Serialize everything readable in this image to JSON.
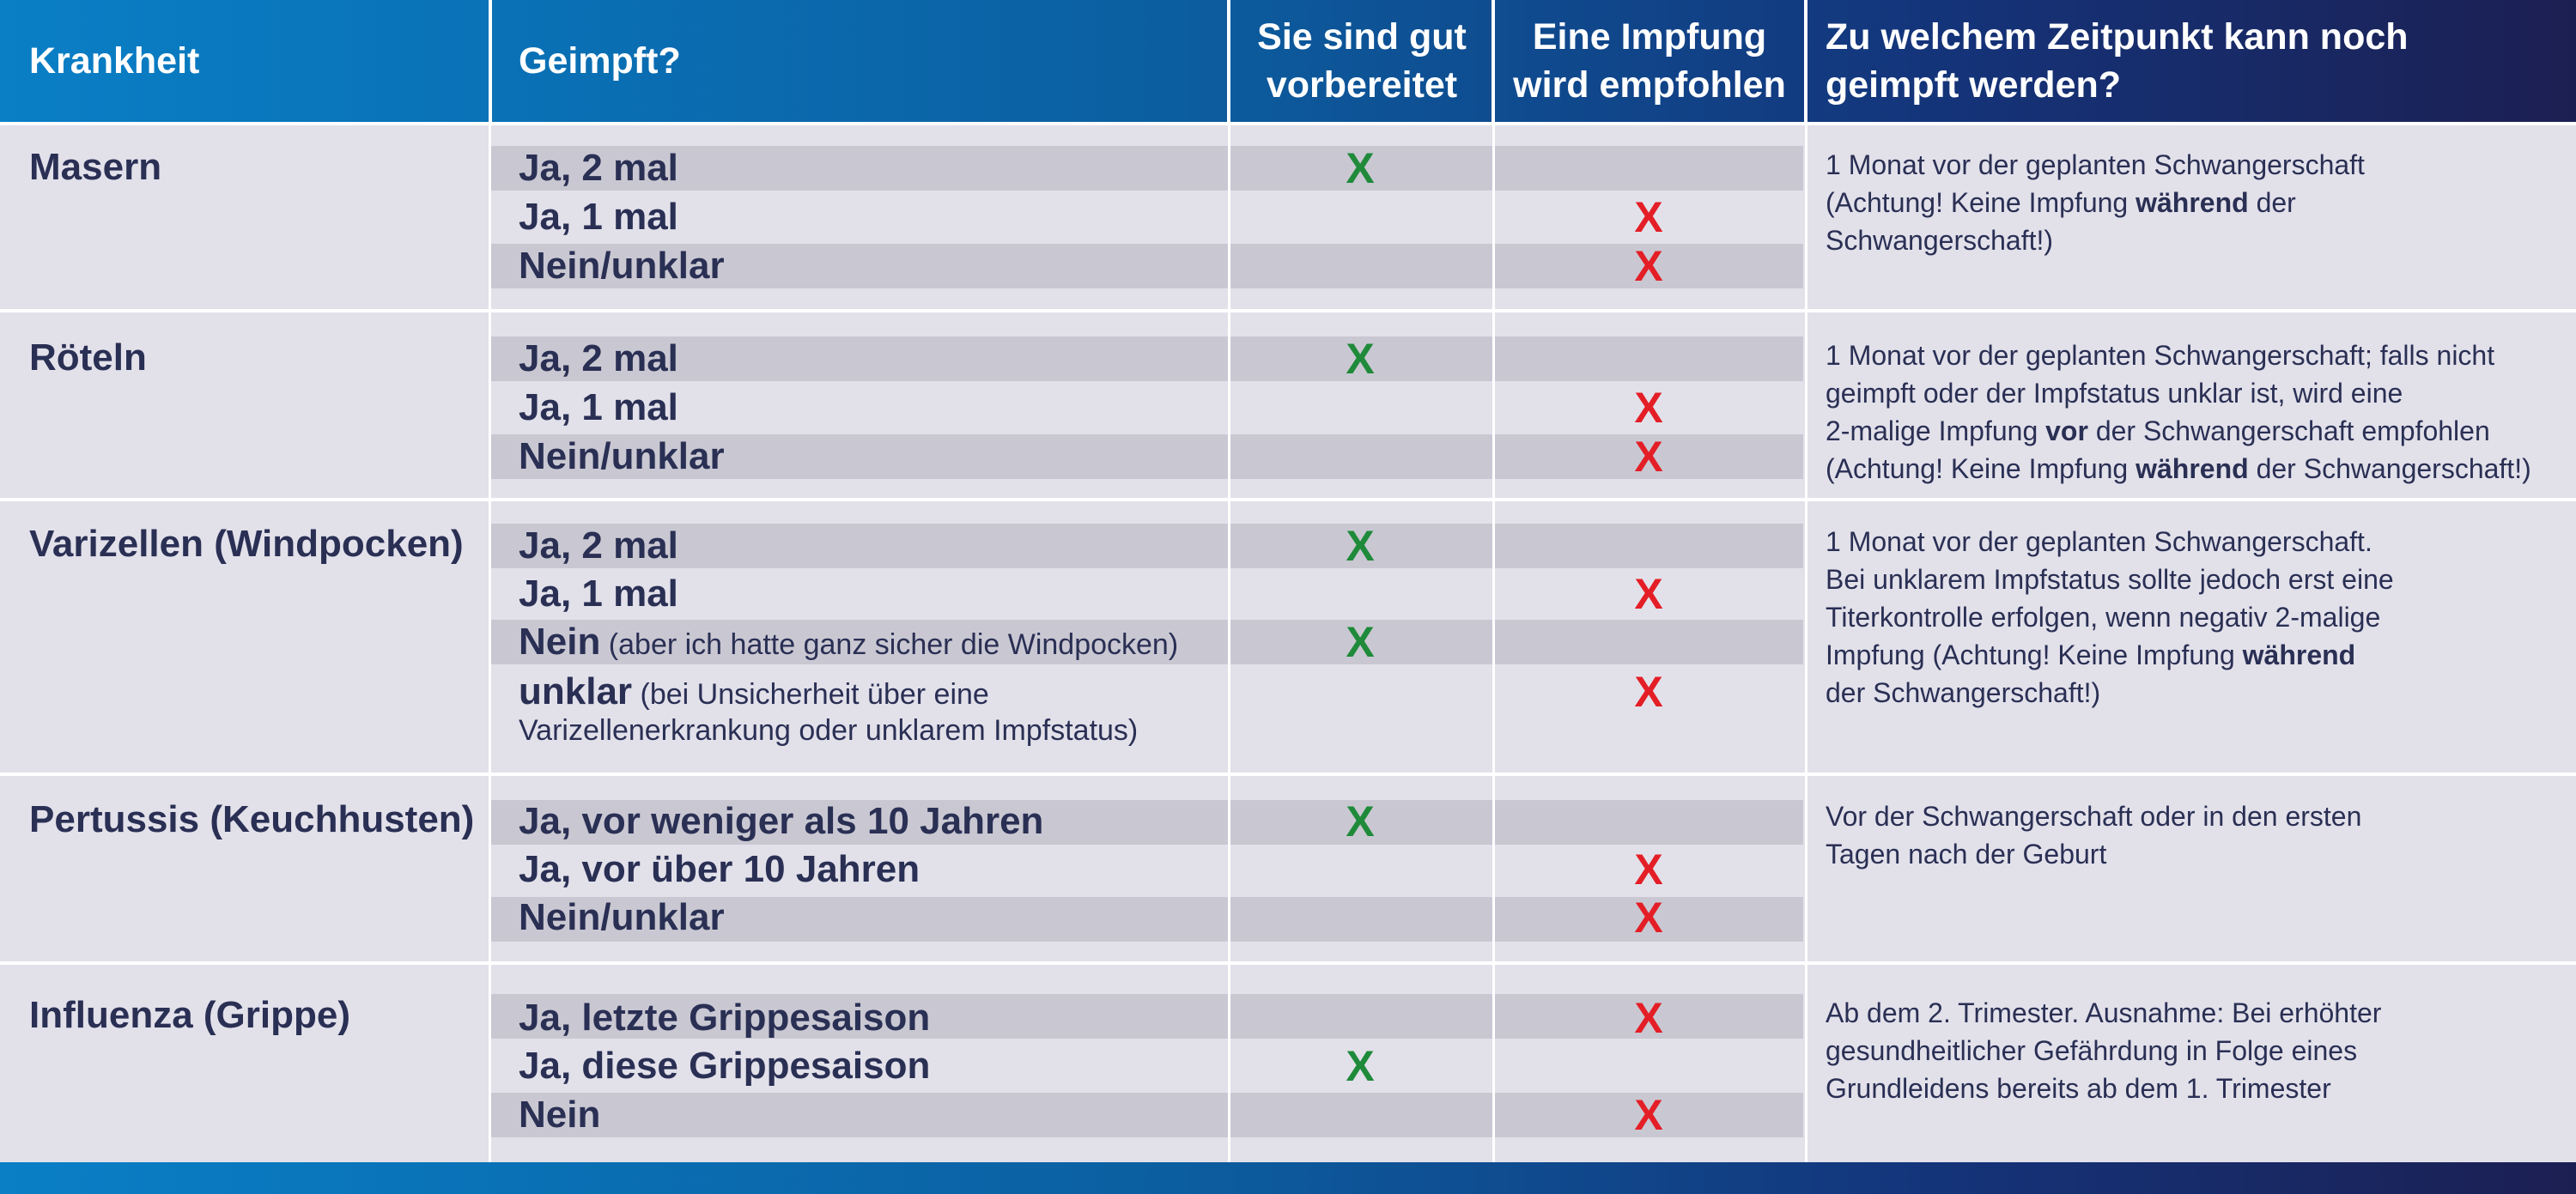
{
  "header": {
    "col1": "Krankheit",
    "col2": "Geimpft?",
    "col3_line1": "Sie sind gut",
    "col3_line2": "vorbereitet",
    "col4_line1": "Eine Impfung",
    "col4_line2": "wird empfohlen",
    "col5_line1": "Zu welchem Zeitpunkt kann noch",
    "col5_line2": "geimpft werden?"
  },
  "mark_symbol": "X",
  "colors": {
    "good": "#1f8a3a",
    "bad": "#e41e26",
    "header_start": "#0a7fc6",
    "header_end": "#1c1f52"
  },
  "rows": [
    {
      "disease": "Masern",
      "answers": [
        {
          "label": "Ja, 2 mal",
          "status": "good"
        },
        {
          "label": "Ja, 1 mal",
          "status": "bad"
        },
        {
          "label": "Nein/unklar",
          "status": "bad"
        }
      ],
      "note": {
        "l1": "1 Monat vor der geplanten Schwangerschaft",
        "l2a": "(Achtung! Keine Impfung ",
        "l2b": "während",
        "l2c": " der",
        "l3": "Schwangerschaft!)"
      }
    },
    {
      "disease": "Röteln",
      "answers": [
        {
          "label": "Ja, 2 mal",
          "status": "good"
        },
        {
          "label": "Ja, 1 mal",
          "status": "bad"
        },
        {
          "label": "Nein/unklar",
          "status": "bad"
        }
      ],
      "note": {
        "l1": "1 Monat vor der geplanten Schwangerschaft; falls nicht",
        "l2": "geimpft oder der Impfstatus unklar ist, wird eine",
        "l3a": "2-malige Impfung ",
        "l3b": "vor",
        "l3c": " der Schwangerschaft empfohlen",
        "l4a": "(Achtung! Keine Impfung ",
        "l4b": "während",
        "l4c": " der Schwangerschaft!)"
      }
    },
    {
      "disease": "Varizellen (Windpocken)",
      "answers": [
        {
          "label": "Ja, 2 mal",
          "status": "good"
        },
        {
          "label": "Ja, 1 mal",
          "status": "bad"
        },
        {
          "label": "Nein",
          "note": " (aber ich hatte ganz sicher die Windpocken)",
          "status": "good"
        },
        {
          "label": "unklar",
          "note": " (bei Unsicherheit über eine",
          "note2": "Varizellenerkrankung oder unklarem Impfstatus)",
          "status": "bad"
        }
      ],
      "note": {
        "l1": "1 Monat vor der geplanten Schwangerschaft.",
        "l2": "Bei unklarem Impfstatus sollte jedoch erst eine",
        "l3": "Titerkontrolle erfolgen, wenn negativ 2-malige",
        "l4a": "Impfung (Achtung! Keine Impfung ",
        "l4b": "während",
        "l5": "der Schwangerschaft!)"
      }
    },
    {
      "disease": "Pertussis (Keuchhusten)",
      "answers": [
        {
          "label": "Ja, vor weniger als 10 Jahren",
          "status": "good"
        },
        {
          "label": "Ja, vor über 10 Jahren",
          "status": "bad"
        },
        {
          "label": "Nein/unklar",
          "status": "bad"
        }
      ],
      "note": {
        "l1": "Vor der Schwangerschaft oder in den ersten",
        "l2": "Tagen nach der Geburt"
      }
    },
    {
      "disease": "Influenza (Grippe)",
      "answers": [
        {
          "label": "Ja, letzte Grippesaison",
          "status": "bad"
        },
        {
          "label": "Ja, diese Grippesaison",
          "status": "good"
        },
        {
          "label": "Nein",
          "status": "bad"
        }
      ],
      "note": {
        "l1": "Ab dem 2. Trimester. Ausnahme: Bei erhöhter",
        "l2": "gesundheitlicher Gefährdung in Folge eines",
        "l3": "Grundleidens bereits ab dem 1. Trimester"
      }
    }
  ]
}
